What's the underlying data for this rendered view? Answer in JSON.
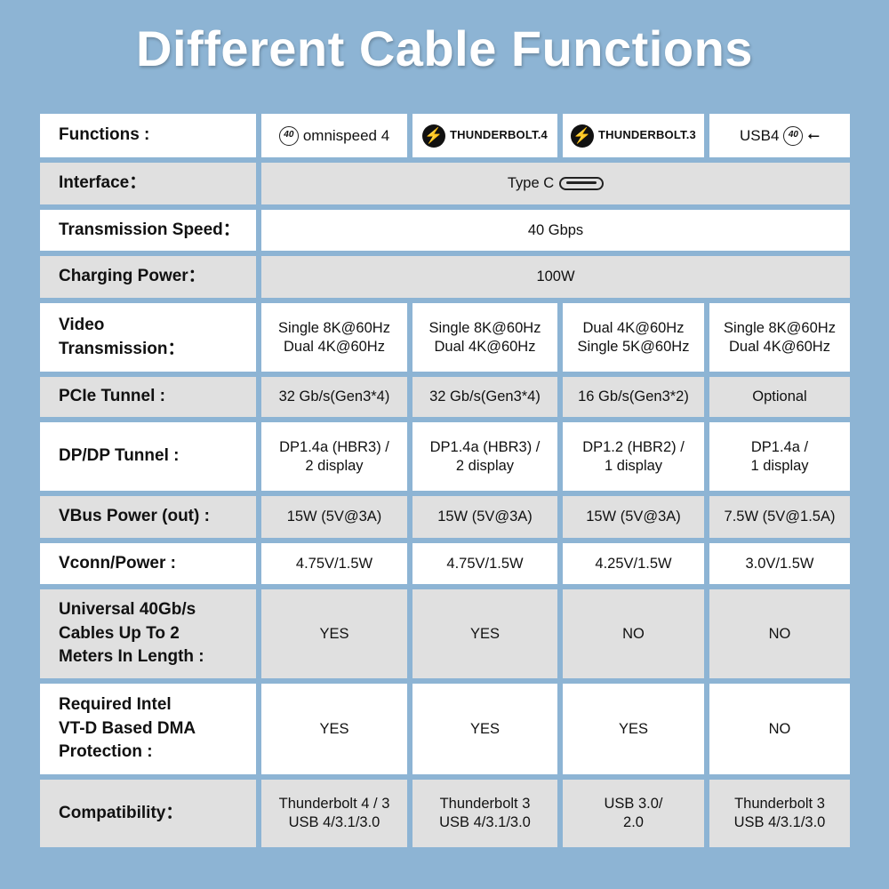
{
  "title": "Different Cable Functions",
  "header": {
    "label": "Functions :",
    "brands": [
      {
        "logo_text": "40",
        "name": "omnispeed 4"
      },
      {
        "name": "THUNDERBOLT.4"
      },
      {
        "name": "THUNDERBOLT.3"
      },
      {
        "name": "USB4",
        "logo_text": "40"
      }
    ]
  },
  "rows": [
    {
      "label": "Interface：",
      "span": "Type C",
      "icon": "usb-c-port-icon"
    },
    {
      "label": "Transmission Speed：",
      "span": "40 Gbps"
    },
    {
      "label": "Charging Power：",
      "span": "100W"
    },
    {
      "label": "Video\nTransmission：",
      "values": [
        "Single 8K@60Hz\nDual 4K@60Hz",
        "Single 8K@60Hz\nDual 4K@60Hz",
        "Dual 4K@60Hz\nSingle 5K@60Hz",
        "Single 8K@60Hz\nDual 4K@60Hz"
      ]
    },
    {
      "label": "PCIe Tunnel :",
      "values": [
        "32 Gb/s(Gen3*4)",
        "32 Gb/s(Gen3*4)",
        "16 Gb/s(Gen3*2)",
        "Optional"
      ]
    },
    {
      "label": "DP/DP Tunnel :",
      "values": [
        "DP1.4a (HBR3) /\n2 display",
        "DP1.4a (HBR3) /\n2 display",
        "DP1.2 (HBR2) /\n1 display",
        "DP1.4a /\n1 display"
      ]
    },
    {
      "label": "VBus Power (out) :",
      "values": [
        "15W (5V@3A)",
        "15W (5V@3A)",
        "15W (5V@3A)",
        "7.5W (5V@1.5A)"
      ]
    },
    {
      "label": "Vconn/Power :",
      "values": [
        "4.75V/1.5W",
        "4.75V/1.5W",
        "4.25V/1.5W",
        "3.0V/1.5W"
      ]
    },
    {
      "label": "Universal 40Gb/s\nCables Up To 2\nMeters In Length :",
      "values": [
        "YES",
        "YES",
        "NO",
        "NO"
      ]
    },
    {
      "label": "Required Intel\nVT-D Based DMA\nProtection :",
      "values": [
        "YES",
        "YES",
        "YES",
        "NO"
      ]
    },
    {
      "label": "Compatibility：",
      "values": [
        "Thunderbolt 4 / 3\nUSB 4/3.1/3.0",
        "Thunderbolt 3\nUSB 4/3.1/3.0",
        "USB 3.0/\n2.0",
        "Thunderbolt 3\nUSB 4/3.1/3.0"
      ]
    }
  ],
  "colors": {
    "background": "#8db4d4",
    "row_white": "#ffffff",
    "row_gray": "#e0e0e0",
    "title": "#ffffff"
  }
}
